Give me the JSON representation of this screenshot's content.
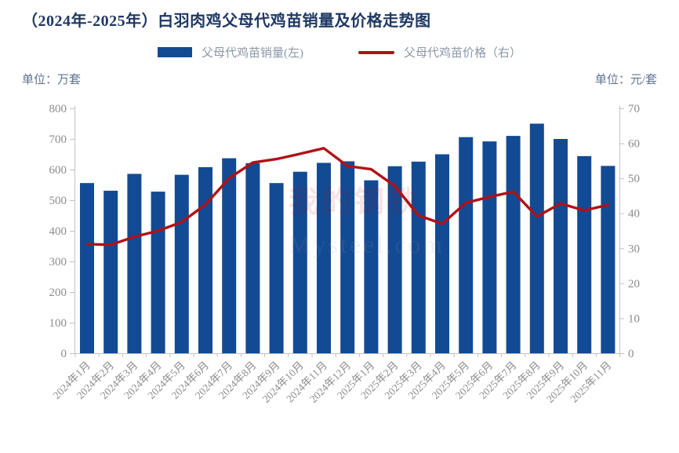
{
  "title": "（2024年-2025年）白羽肉鸡父母代鸡苗销量及价格走势图",
  "legend": {
    "sales_label": "父母代鸡苗销量(左)",
    "price_label": "父母代鸡苗价格（右）"
  },
  "units": {
    "left": "单位：万套",
    "right": "单位：元/套"
  },
  "watermark": {
    "cn": "我的钢铁",
    "en": "Mysteel.com"
  },
  "colors": {
    "bar": "#134a94",
    "line": "#b01116",
    "title": "#1f3864",
    "unit": "#5f7391",
    "legend_text": "#8a97a8",
    "axis": "#c3c3c3",
    "tick_text": "#8c8c8c",
    "watermark_cn": "#c00000",
    "watermark_en": "#9a9a9a"
  },
  "chart_data": {
    "type": "bar",
    "title": "（2024年-2025年）白羽肉鸡父母代鸡苗销量及价格走势图",
    "categories": [
      "2024年1月",
      "2024年2月",
      "2024年3月",
      "2024年4月",
      "2024年5月",
      "2024年6月",
      "2024年7月",
      "2024年8月",
      "2024年9月",
      "2024年10月",
      "2024年11月",
      "2024年12月",
      "2025年1月",
      "2025年2月",
      "2025年3月",
      "2025年4月",
      "2025年5月",
      "2025年6月",
      "2025年7月",
      "2025年8月",
      "2025年9月",
      "2025年10月",
      "2025年11月"
    ],
    "series": [
      {
        "name": "父母代鸡苗销量(左)",
        "type": "bar",
        "axis": "left",
        "values": [
          556,
          531,
          586,
          528,
          583,
          608,
          637,
          621,
          556,
          593,
          622,
          627,
          565,
          611,
          626,
          650,
          706,
          692,
          710,
          750,
          700,
          644,
          612
        ]
      },
      {
        "name": "父母代鸡苗价格（右）",
        "type": "line",
        "axis": "right",
        "values": [
          31.2,
          31.0,
          33.3,
          35.0,
          37.5,
          42.5,
          50.0,
          54.5,
          55.5,
          57.0,
          58.6,
          53.5,
          52.6,
          47.8,
          39.4,
          37.0,
          43.0,
          44.7,
          46.2,
          39.1,
          42.8,
          40.8,
          42.4
        ]
      }
    ],
    "left_axis": {
      "label": "单位：万套",
      "min": 0,
      "max": 800,
      "step": 100,
      "ticks": [
        0,
        100,
        200,
        300,
        400,
        500,
        600,
        700,
        800
      ]
    },
    "right_axis": {
      "label": "单位：元/套",
      "min": 0,
      "max": 70,
      "step": 10,
      "ticks": [
        0,
        10,
        20,
        30,
        40,
        50,
        60,
        70
      ]
    },
    "legend_position": "top",
    "grid": false
  }
}
